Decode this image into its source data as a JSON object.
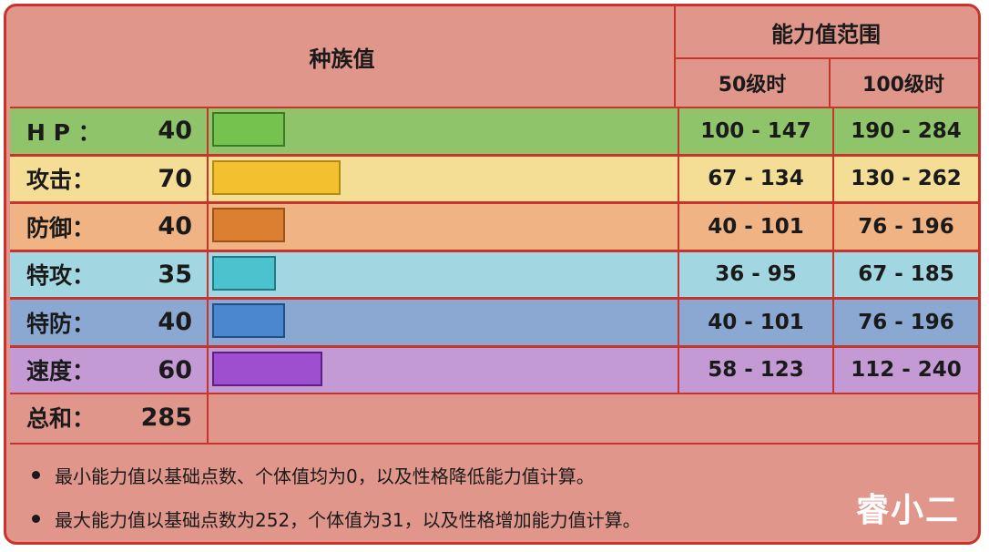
{
  "header": {
    "base_stats": "种族值",
    "stat_range": "能力值范围",
    "level50": "50级时",
    "level100": "100级时"
  },
  "rows": [
    {
      "label": "H P ：",
      "value": "40",
      "bar_fraction": 0.4,
      "range50": "100 - 147",
      "range100": "190 - 284",
      "bg": "#8fc46a",
      "bar_color": "#76c24f",
      "bar_border": "#3c7a2a"
    },
    {
      "label": "攻击：",
      "value": "70",
      "bar_fraction": 0.7,
      "range50": "67 - 134",
      "range100": "130 - 262",
      "bg": "#f4dd95",
      "bar_color": "#f3c12f",
      "bar_border": "#b38a14"
    },
    {
      "label": "防御：",
      "value": "40",
      "bar_fraction": 0.4,
      "range50": "40 - 101",
      "range100": "76 - 196",
      "bg": "#f0b384",
      "bar_color": "#dd7f30",
      "bar_border": "#9a5419"
    },
    {
      "label": "特攻：",
      "value": "35",
      "bar_fraction": 0.35,
      "range50": "36 - 95",
      "range100": "67 - 185",
      "bg": "#a2d6e0",
      "bar_color": "#4cc2cf",
      "bar_border": "#1d7b86"
    },
    {
      "label": "特防：",
      "value": "40",
      "bar_fraction": 0.4,
      "range50": "40 - 101",
      "range100": "76 - 196",
      "bg": "#8aa8d2",
      "bar_color": "#4a87cf",
      "bar_border": "#204f8a"
    },
    {
      "label": "速度：",
      "value": "60",
      "bar_fraction": 0.6,
      "range50": "58 - 123",
      "range100": "112 - 240",
      "bg": "#c49ad4",
      "bar_color": "#9e4fcf",
      "bar_border": "#5c1f86"
    }
  ],
  "total": {
    "label": "总和：",
    "value": "285"
  },
  "notes": [
    "最小能力值以基础点数、个体值均为0，以及性格降低能力值计算。",
    "最大能力值以基础点数为252，个体值为31，以及性格增加能力值计算。"
  ],
  "watermark": "睿小二",
  "colors": {
    "border": "#c8332b",
    "background": "#e0968a"
  }
}
